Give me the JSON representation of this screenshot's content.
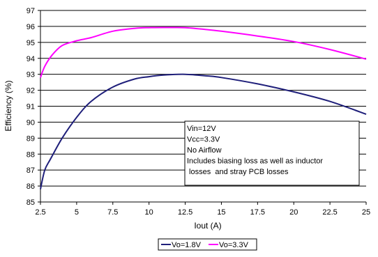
{
  "chart_data": {
    "type": "line",
    "title": "",
    "xlabel": "Iout (A)",
    "ylabel": "Efficiency (%)",
    "xlim": [
      2.5,
      25
    ],
    "ylim": [
      85,
      97
    ],
    "x_ticks": [
      "2.5",
      "5",
      "7.5",
      "10",
      "12.5",
      "15",
      "17.5",
      "20",
      "22.5",
      "25"
    ],
    "y_ticks": [
      "85",
      "86",
      "87",
      "88",
      "89",
      "90",
      "91",
      "92",
      "93",
      "94",
      "95",
      "96",
      "97"
    ],
    "grid": "horizontal",
    "legend_position": "bottom",
    "series": [
      {
        "name": "Vo=1.8V",
        "color": "#1f1f7a",
        "x": [
          2.5,
          2.8,
          3.2,
          4.0,
          5.0,
          6.0,
          7.5,
          9.0,
          10.0,
          11.0,
          12.5,
          14.0,
          15.0,
          17.5,
          20.0,
          22.5,
          25.0
        ],
        "y": [
          85.8,
          87.0,
          87.7,
          89.0,
          90.3,
          91.3,
          92.2,
          92.7,
          92.85,
          92.95,
          93.0,
          92.9,
          92.8,
          92.4,
          91.9,
          91.3,
          90.5
        ]
      },
      {
        "name": "Vo=3.3V",
        "color": "#ff00ff",
        "x": [
          2.5,
          2.8,
          3.3,
          4.0,
          5.0,
          6.0,
          7.5,
          9.0,
          10.0,
          11.0,
          12.5,
          14.0,
          15.0,
          17.5,
          20.0,
          22.5,
          25.0
        ],
        "y": [
          92.8,
          93.5,
          94.2,
          94.8,
          95.1,
          95.3,
          95.7,
          95.88,
          95.92,
          95.93,
          95.92,
          95.8,
          95.7,
          95.4,
          95.05,
          94.55,
          93.95
        ]
      }
    ],
    "annotations": [
      "Vin=12V",
      "Vcc=3.3V",
      "No Airflow",
      "Includes biasing loss as well as inductor",
      " losses  and stray PCB losses"
    ]
  }
}
